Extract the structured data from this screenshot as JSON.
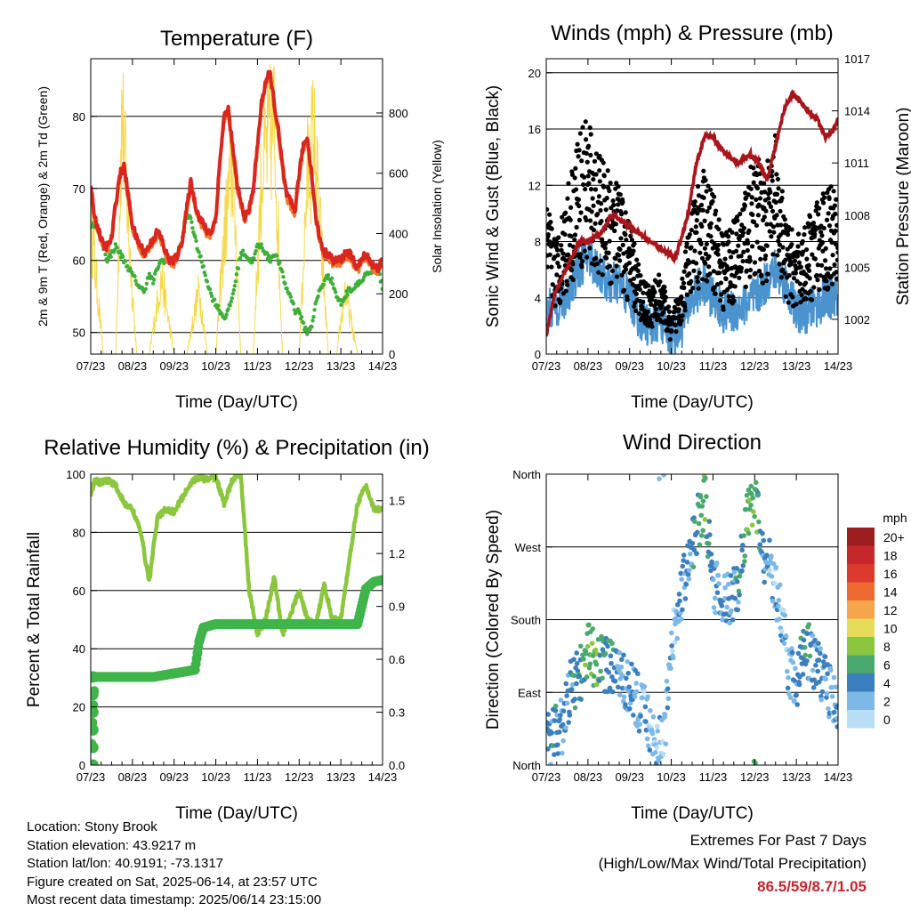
{
  "x_ticks": [
    "07/23",
    "08/23",
    "09/23",
    "10/23",
    "11/23",
    "12/23",
    "13/23",
    "14/23"
  ],
  "colors": {
    "temp2m": "#d9261f",
    "temp9m": "#f07a2a",
    "dewpoint": "#3fae3a",
    "solar": "#f5d94a",
    "wind": "#4a93cf",
    "gust": "#000000",
    "pressure": "#a8161c",
    "rh": "#8cc63f",
    "precip": "#3fb44a",
    "extremes": "#c0262d"
  },
  "info": {
    "location": "Location: Stony Brook",
    "elevation": "Station elevation: 43.9217 m",
    "latlon": "Station lat/lon: 40.9191; -73.1317",
    "created": "Figure created on Sat, 2025-06-14, at 23:57 UTC",
    "latest": "Most recent data timestamp: 2025/06/14 23:15:00"
  },
  "extremes": {
    "title": "Extremes For Past 7 Days",
    "subtitle": "(High/Low/Max Wind/Total Precipitation)",
    "values": "86.5/59/8.7/1.05"
  },
  "chart_data": [
    {
      "type": "line",
      "title": "Temperature (F)",
      "xlabel": "Time (Day/UTC)",
      "ylabel": "2m & 9m T (Red, Orange) & 2m Td (Green)",
      "y2label": "Solar Insolation (Yellow)",
      "xlim": [
        0,
        7
      ],
      "ylim": [
        47,
        88
      ],
      "yticks": [
        50,
        60,
        70,
        80
      ],
      "y2lim": [
        0,
        980
      ],
      "y2ticks": [
        0,
        200,
        400,
        600,
        800
      ],
      "grid": true,
      "series": [
        {
          "name": "2m T",
          "axis": "left",
          "x": [
            0,
            0.1,
            0.2,
            0.3,
            0.4,
            0.5,
            0.6,
            0.7,
            0.8,
            0.9,
            1.0,
            1.1,
            1.2,
            1.3,
            1.4,
            1.5,
            1.6,
            1.7,
            1.8,
            1.9,
            2.0,
            2.1,
            2.2,
            2.3,
            2.4,
            2.5,
            2.6,
            2.7,
            2.8,
            2.9,
            3.0,
            3.1,
            3.2,
            3.3,
            3.4,
            3.5,
            3.6,
            3.7,
            3.8,
            3.9,
            4.0,
            4.1,
            4.2,
            4.3,
            4.4,
            4.5,
            4.6,
            4.7,
            4.8,
            4.9,
            5.0,
            5.1,
            5.2,
            5.3,
            5.4,
            5.5,
            5.6,
            5.7,
            5.8,
            5.9,
            6.0,
            6.1,
            6.2,
            6.3,
            6.4,
            6.5,
            6.6,
            6.7,
            6.8,
            6.9,
            7.0
          ],
          "y": [
            70,
            66,
            64,
            62,
            62,
            63,
            68,
            72,
            73,
            69,
            65,
            63,
            62,
            61,
            62,
            63,
            64,
            63,
            61,
            60,
            60,
            61,
            63,
            67,
            71,
            68,
            66,
            65,
            64,
            64,
            66,
            74,
            80,
            81,
            76,
            71,
            68,
            66,
            67,
            70,
            76,
            82,
            85,
            86,
            82,
            78,
            73,
            69,
            68,
            67,
            72,
            76,
            77,
            72,
            66,
            63,
            61,
            61,
            60,
            60,
            60,
            61,
            61,
            60,
            59,
            60,
            61,
            60,
            59,
            59,
            60
          ]
        },
        {
          "name": "9m T",
          "axis": "left",
          "x": [
            0,
            0.5,
            1.0,
            1.5,
            2.0,
            2.5,
            3.0,
            3.5,
            4.0,
            4.5,
            5.0,
            5.5,
            6.0,
            6.5,
            7.0
          ],
          "y": [
            69,
            63,
            65,
            63,
            60,
            68,
            66,
            71,
            76,
            78,
            72,
            62,
            60,
            60,
            59
          ]
        },
        {
          "name": "2m Td",
          "axis": "left",
          "x": [
            0,
            0.1,
            0.2,
            0.3,
            0.4,
            0.5,
            0.6,
            0.7,
            0.8,
            0.9,
            1.0,
            1.1,
            1.2,
            1.3,
            1.4,
            1.5,
            1.6,
            1.7,
            1.8,
            1.9,
            2.0,
            2.1,
            2.2,
            2.3,
            2.4,
            2.5,
            2.6,
            2.7,
            2.8,
            2.9,
            3.0,
            3.1,
            3.2,
            3.3,
            3.4,
            3.5,
            3.6,
            3.7,
            3.8,
            3.9,
            4.0,
            4.1,
            4.2,
            4.3,
            4.4,
            4.5,
            4.6,
            4.7,
            4.8,
            4.9,
            5.0,
            5.1,
            5.2,
            5.3,
            5.4,
            5.5,
            5.6,
            5.7,
            5.8,
            5.9,
            6.0,
            6.1,
            6.2,
            6.3,
            6.4,
            6.5,
            6.6,
            6.7,
            6.8,
            6.9,
            7.0
          ],
          "y": [
            65,
            65,
            64,
            62,
            60,
            61,
            62,
            61,
            60,
            59,
            58,
            57,
            56,
            56,
            58,
            57,
            59,
            60,
            60,
            60,
            60,
            61,
            63,
            66,
            66,
            63,
            61,
            59,
            57,
            55,
            54,
            53,
            52,
            53,
            55,
            58,
            61,
            61,
            60,
            60,
            62,
            62,
            61,
            60,
            61,
            60,
            58,
            56,
            55,
            53,
            53,
            51,
            50,
            51,
            54,
            56,
            57,
            58,
            57,
            55,
            54,
            55,
            56,
            56,
            57,
            57,
            58,
            58,
            59,
            59,
            56
          ]
        },
        {
          "name": "Solar Insolation",
          "axis": "right",
          "x": [
            0,
            0.3,
            0.6,
            0.75,
            0.9,
            1.1,
            1.4,
            1.7,
            2.0,
            2.3,
            2.6,
            2.8,
            3.0,
            3.2,
            3.4,
            3.6,
            3.9,
            4.1,
            4.25,
            4.4,
            4.6,
            4.8,
            5.0,
            5.2,
            5.35,
            5.5,
            5.7,
            5.9,
            6.1,
            6.4,
            6.7,
            7.0
          ],
          "y": [
            520,
            0,
            0,
            950,
            500,
            0,
            0,
            300,
            0,
            0,
            250,
            0,
            0,
            450,
            750,
            0,
            0,
            700,
            820,
            900,
            0,
            0,
            0,
            700,
            850,
            500,
            0,
            0,
            250,
            0,
            0,
            0
          ]
        }
      ]
    },
    {
      "type": "scatter",
      "title": "Winds (mph) & Pressure (mb)",
      "xlabel": "Time (Day/UTC)",
      "ylabel": "Sonic Wind & Gust (Blue, Black)",
      "y2label": "Station Pressure (Maroon)",
      "xlim": [
        0,
        7
      ],
      "ylim": [
        0,
        21
      ],
      "yticks": [
        0,
        4,
        8,
        12,
        16,
        20
      ],
      "y2lim": [
        1000,
        1017
      ],
      "y2ticks": [
        1002,
        1005,
        1008,
        1011,
        1014,
        1017
      ],
      "grid": true,
      "series": [
        {
          "name": "Sonic Wind",
          "axis": "left",
          "x": [
            0,
            0.25,
            0.5,
            0.75,
            1.0,
            1.25,
            1.5,
            1.75,
            2.0,
            2.25,
            2.5,
            2.75,
            3.0,
            3.25,
            3.5,
            3.75,
            4.0,
            4.25,
            4.5,
            4.75,
            5.0,
            5.25,
            5.5,
            5.75,
            6.0,
            6.25,
            6.5,
            6.75,
            7.0
          ],
          "y": [
            3,
            3.5,
            4,
            6,
            7,
            6,
            5,
            5,
            4,
            2.5,
            2,
            2.5,
            1,
            2,
            4,
            5,
            4,
            3,
            3,
            3.5,
            4,
            5,
            6,
            5,
            3,
            3,
            3.5,
            4,
            4
          ]
        },
        {
          "name": "Gust",
          "axis": "left",
          "x": [
            0,
            0.25,
            0.5,
            0.75,
            1.0,
            1.25,
            1.5,
            1.75,
            2.0,
            2.25,
            2.5,
            2.75,
            3.0,
            3.25,
            3.5,
            3.75,
            4.0,
            4.25,
            4.5,
            4.75,
            5.0,
            5.25,
            5.5,
            5.75,
            6.0,
            6.25,
            6.5,
            6.75,
            7.0
          ],
          "y": [
            9,
            7,
            10,
            13,
            14,
            12,
            11,
            10,
            8,
            5,
            4,
            5,
            2,
            5,
            9,
            11,
            10,
            7,
            8,
            10,
            12,
            11,
            13,
            8,
            7,
            8,
            9,
            10,
            12
          ]
        },
        {
          "name": "Station Pressure",
          "axis": "right",
          "x": [
            0,
            0.2,
            0.5,
            0.8,
            1.0,
            1.3,
            1.6,
            1.9,
            2.2,
            2.5,
            2.8,
            3.1,
            3.4,
            3.6,
            3.8,
            4.0,
            4.3,
            4.6,
            4.9,
            5.1,
            5.3,
            5.5,
            5.7,
            5.9,
            6.1,
            6.3,
            6.5,
            6.7,
            6.9,
            7.0
          ],
          "y": [
            1001,
            1003.5,
            1005,
            1006.5,
            1006.5,
            1007,
            1008,
            1007.5,
            1007,
            1006.5,
            1006,
            1005.5,
            1008,
            1011,
            1012.5,
            1012.5,
            1011.5,
            1011,
            1011.5,
            1011,
            1010,
            1012,
            1014,
            1015,
            1014.5,
            1014,
            1013.5,
            1012.5,
            1013,
            1013.5
          ]
        }
      ]
    },
    {
      "type": "line",
      "title": "Relative Humidity (%) & Precipitation (in)",
      "xlabel": "Time (Day/UTC)",
      "ylabel": "Percent & Total Rainfall",
      "xlim": [
        0,
        7
      ],
      "ylim": [
        0,
        100
      ],
      "yticks": [
        0,
        20,
        40,
        60,
        80,
        100
      ],
      "y2lim": [
        0,
        1.65
      ],
      "y2ticks": [
        "0.0",
        "0.3",
        "0.6",
        "0.9",
        "1.2",
        "1.5"
      ],
      "grid": true,
      "series": [
        {
          "name": "Relative Humidity",
          "axis": "left",
          "x": [
            0,
            0.1,
            0.2,
            0.4,
            0.6,
            0.8,
            1.0,
            1.2,
            1.4,
            1.6,
            1.8,
            2.0,
            2.2,
            2.4,
            2.6,
            2.8,
            3.0,
            3.2,
            3.4,
            3.6,
            3.8,
            4.0,
            4.2,
            4.4,
            4.6,
            4.8,
            5.0,
            5.2,
            5.4,
            5.6,
            5.8,
            6.0,
            6.2,
            6.4,
            6.6,
            6.8,
            7.0
          ],
          "y": [
            93,
            98,
            97,
            98,
            96,
            90,
            88,
            80,
            63,
            85,
            88,
            87,
            92,
            97,
            99,
            98,
            99,
            90,
            98,
            100,
            60,
            45,
            50,
            65,
            45,
            52,
            60,
            50,
            48,
            62,
            50,
            50,
            70,
            90,
            96,
            88,
            88
          ]
        },
        {
          "name": "Total Precipitation",
          "axis": "right",
          "x": [
            0,
            0.05,
            0.1,
            0.15,
            0.2,
            0.5,
            1.0,
            1.5,
            2.0,
            2.5,
            2.6,
            2.7,
            3.0,
            3.5,
            4.0,
            4.5,
            5.0,
            5.5,
            6.0,
            6.4,
            6.5,
            6.6,
            6.8,
            7.0
          ],
          "y": [
            0,
            0.3,
            0.5,
            0.5,
            0.5,
            0.5,
            0.5,
            0.5,
            0.52,
            0.54,
            0.7,
            0.78,
            0.8,
            0.8,
            0.8,
            0.8,
            0.8,
            0.8,
            0.8,
            0.8,
            0.9,
            1.0,
            1.04,
            1.05
          ]
        }
      ]
    },
    {
      "type": "scatter",
      "title": "Wind Direction",
      "xlabel": "Time (Day/UTC)",
      "ylabel": "Direction (Colored By Speed)",
      "xlim": [
        0,
        7
      ],
      "ylim": [
        0,
        360
      ],
      "yticks": [
        "North",
        "East",
        "South",
        "West",
        "North"
      ],
      "legend_title": "mph",
      "legend_labels": [
        "20+",
        "18",
        "16",
        "14",
        "12",
        "10",
        "8",
        "6",
        "4",
        "2",
        "0"
      ],
      "legend_colors": [
        "#9c1d20",
        "#c6272b",
        "#dc3a2c",
        "#ee6a30",
        "#f7a54a",
        "#e6dc57",
        "#8cc63f",
        "#4aa96c",
        "#3b7fbe",
        "#7db8e6",
        "#b9def5"
      ],
      "grid": true,
      "series": [
        {
          "name": "Direction",
          "x": [
            0,
            0.2,
            0.4,
            0.6,
            0.8,
            1.0,
            1.2,
            1.4,
            1.6,
            1.8,
            2.0,
            2.2,
            2.4,
            2.6,
            2.8,
            3.0,
            3.2,
            3.4,
            3.6,
            3.8,
            4.0,
            4.2,
            4.4,
            4.6,
            4.8,
            5.0,
            5.2,
            5.4,
            5.6,
            5.8,
            6.0,
            6.2,
            6.4,
            6.6,
            6.8,
            7.0
          ],
          "y": [
            30,
            40,
            50,
            100,
            110,
            140,
            130,
            125,
            120,
            110,
            100,
            80,
            60,
            40,
            20,
            140,
            200,
            260,
            290,
            330,
            220,
            210,
            200,
            220,
            300,
            340,
            260,
            240,
            200,
            120,
            100,
            150,
            130,
            110,
            90,
            60
          ],
          "speed": [
            3,
            4,
            3,
            4,
            4,
            7,
            6,
            5,
            4,
            3,
            3,
            2,
            2,
            2,
            2,
            2,
            3,
            3,
            5,
            7,
            3,
            3,
            3,
            4,
            6,
            7,
            3,
            2,
            2,
            2,
            3,
            5,
            4,
            3,
            3,
            3
          ]
        }
      ]
    }
  ]
}
